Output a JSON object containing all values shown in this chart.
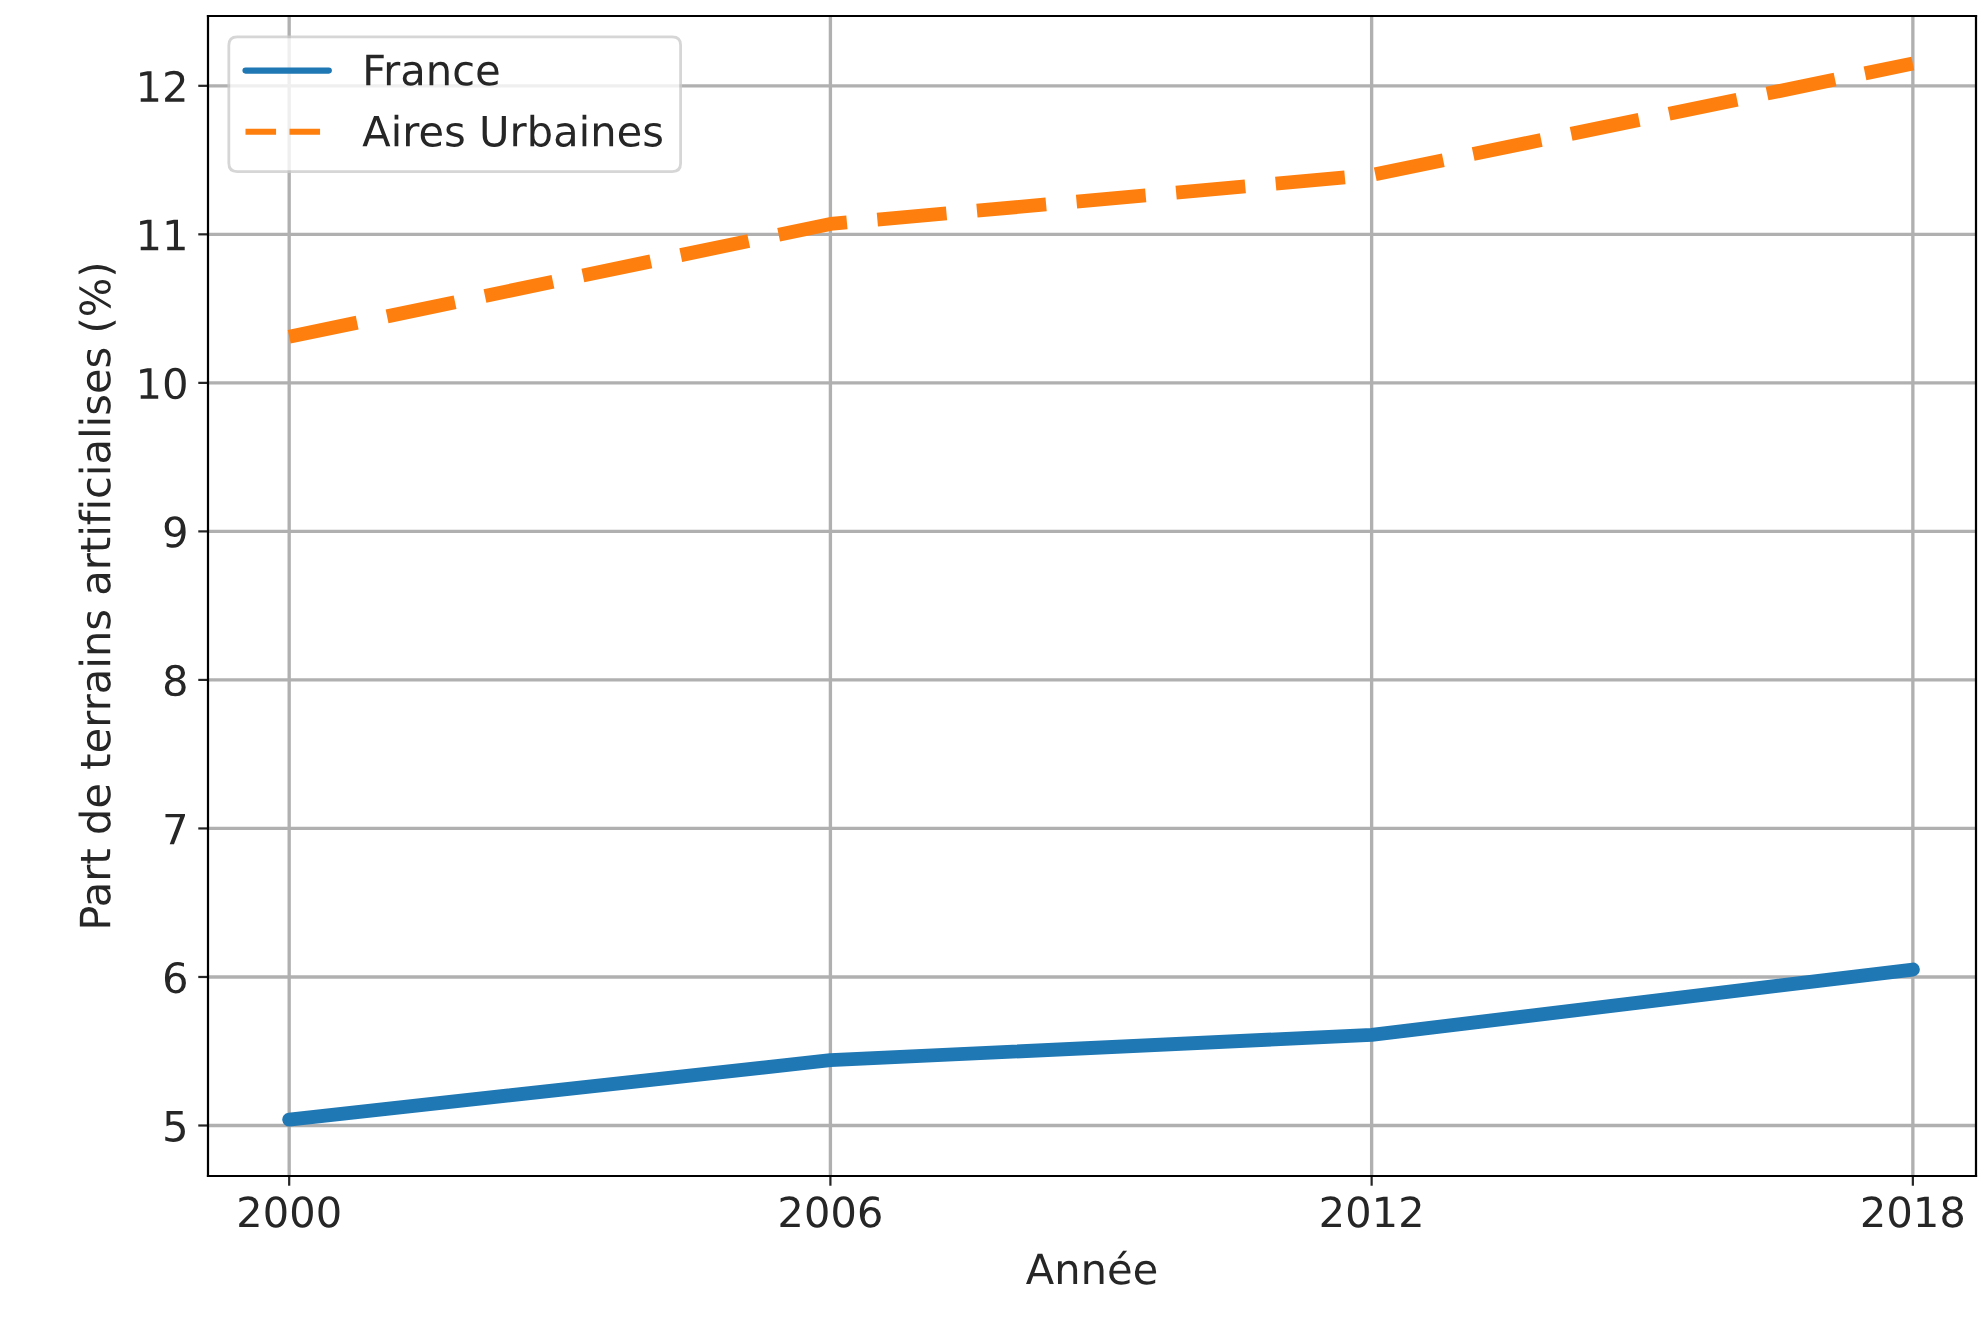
{
  "chart_data": {
    "type": "line",
    "xlabel": "Année",
    "ylabel": "Part de terrains artificialises (%)",
    "x": [
      2000,
      2006,
      2012,
      2018
    ],
    "series": [
      {
        "name": "France",
        "color": "#1f77b4",
        "line_style": "solid",
        "values": [
          5.04,
          5.44,
          5.61,
          6.05
        ]
      },
      {
        "name": "Aires Urbaines",
        "color": "#ff7f0e",
        "line_style": "dashed",
        "values": [
          10.31,
          11.07,
          11.4,
          12.15
        ]
      }
    ],
    "xlim": [
      1999.1,
      2018.7
    ],
    "xticks": [
      2000,
      2006,
      2012,
      2018
    ],
    "ylim": [
      4.66,
      12.47
    ],
    "yticks": [
      5,
      6,
      7,
      8,
      9,
      10,
      11,
      12
    ],
    "grid": true,
    "legend": "top left",
    "marker": "none"
  }
}
